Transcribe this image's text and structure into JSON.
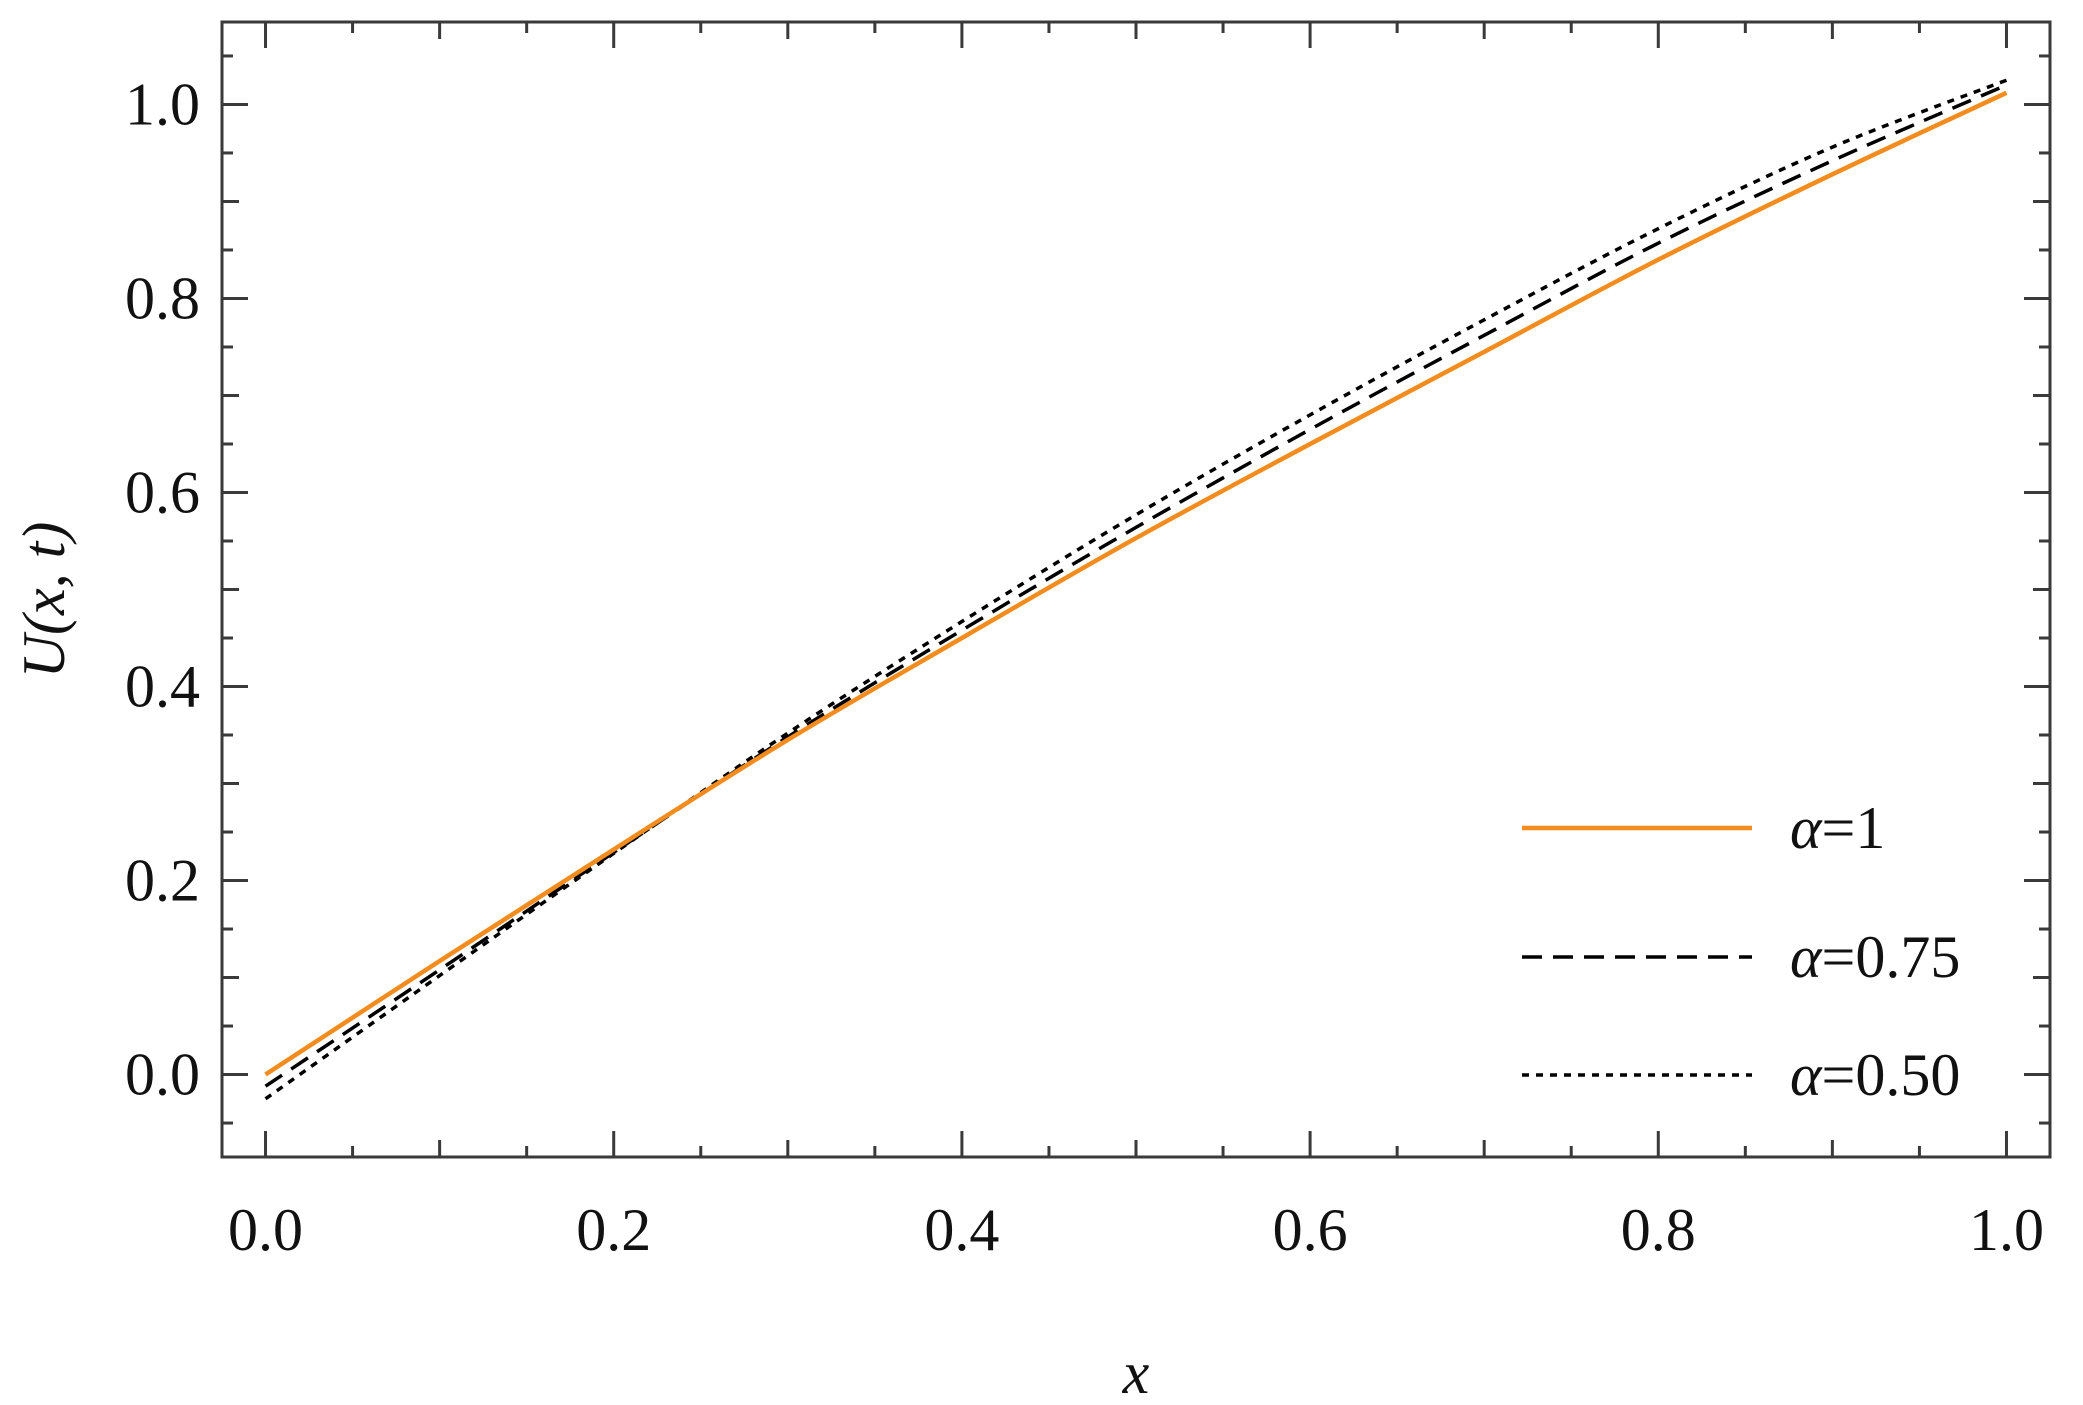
{
  "chart_data": {
    "type": "line",
    "title": "",
    "xlabel": "x",
    "ylabel": "U(x, t)",
    "xlim": [
      -0.025,
      1.025
    ],
    "ylim": [
      -0.085,
      1.085
    ],
    "x_ticks": [
      "0.0",
      "0.2",
      "0.4",
      "0.6",
      "0.8",
      "1.0"
    ],
    "y_ticks": [
      "0.0",
      "0.2",
      "0.4",
      "0.6",
      "0.8",
      "1.0"
    ],
    "grid": false,
    "legend_position": "bottom-right",
    "x": [
      0.0,
      0.1,
      0.2,
      0.3,
      0.4,
      0.5,
      0.6,
      0.7,
      0.8,
      0.9,
      1.0
    ],
    "series": [
      {
        "name": "α=1",
        "style": "solid",
        "color": "#f28c1e",
        "values": [
          0.0,
          0.117,
          0.232,
          0.345,
          0.45,
          0.553,
          0.65,
          0.745,
          0.84,
          0.928,
          1.012
        ]
      },
      {
        "name": "α=0.75",
        "style": "dashed",
        "color": "#000000",
        "values": [
          -0.012,
          0.108,
          0.229,
          0.348,
          0.458,
          0.564,
          0.665,
          0.762,
          0.857,
          0.942,
          1.02
        ]
      },
      {
        "name": "α=0.50",
        "style": "dotted",
        "color": "#000000",
        "values": [
          -0.025,
          0.102,
          0.228,
          0.352,
          0.467,
          0.577,
          0.68,
          0.778,
          0.872,
          0.956,
          1.025
        ]
      }
    ]
  }
}
